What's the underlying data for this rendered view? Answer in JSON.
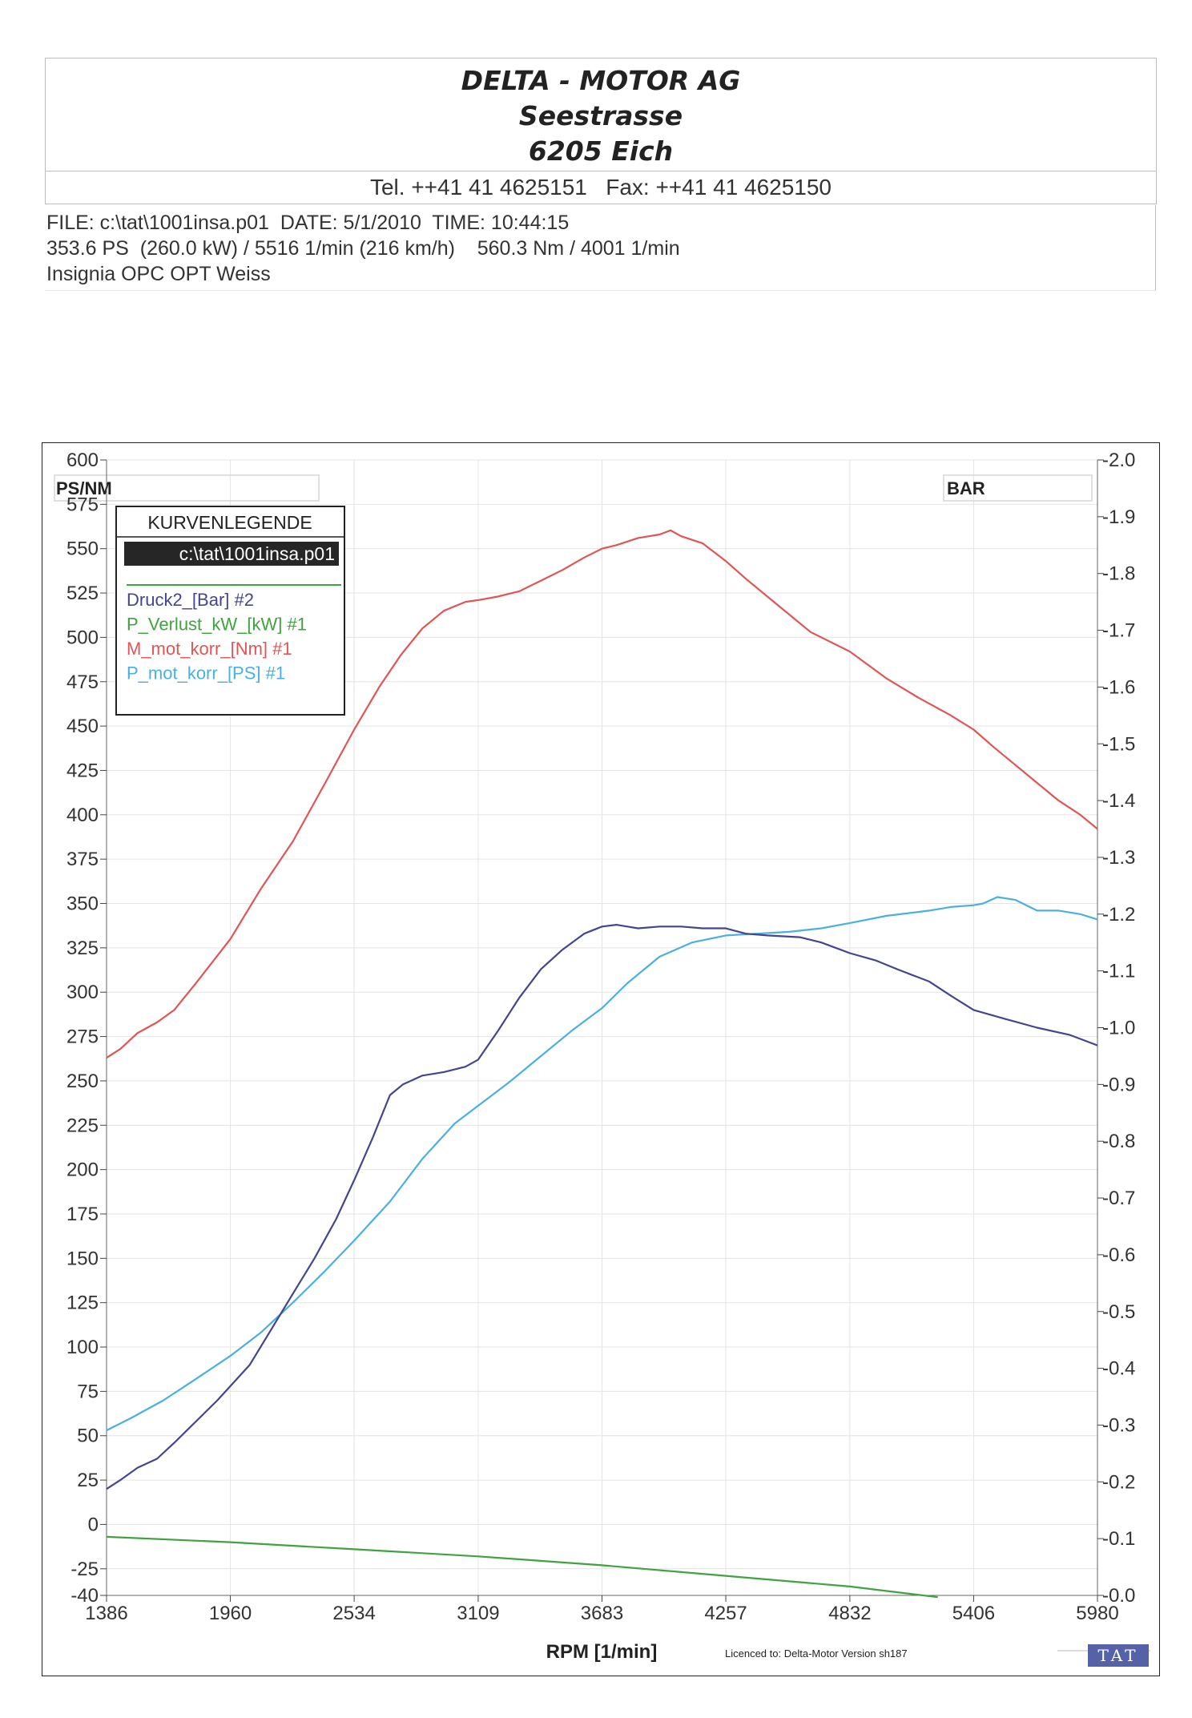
{
  "header": {
    "company": "DELTA - MOTOR AG",
    "street": "Seestrasse",
    "city": "6205 Eich",
    "contact": "Tel. ++41 41 4625151   Fax: ++41 41 4625150"
  },
  "info": {
    "line1": "FILE: c:\\tat\\1001insa.p01  DATE: 5/1/2010  TIME: 10:44:15",
    "line2": "353.6 PS  (260.0 kW) / 5516 1/min (216 km/h)    560.3 Nm / 4001 1/min",
    "line3": "Insignia OPC OPT Weiss"
  },
  "chart_data": {
    "type": "line",
    "xlabel": "RPM  [1/min]",
    "y_left_label": "PS/NM",
    "y_right_label": "BAR",
    "xlim": [
      1386,
      5980
    ],
    "x_ticks": [
      "1386",
      "1960",
      "2534",
      "3109",
      "3683",
      "4257",
      "4832",
      "5406",
      "5980"
    ],
    "ylim_left": [
      -40,
      600
    ],
    "y_left_ticks": [
      "600",
      "575",
      "550",
      "525",
      "500",
      "475",
      "450",
      "425",
      "400",
      "375",
      "350",
      "325",
      "300",
      "275",
      "250",
      "225",
      "200",
      "175",
      "150",
      "125",
      "100",
      "75",
      "50",
      "25",
      "0",
      "-25",
      "-40"
    ],
    "ylim_right": [
      -2.0,
      0.0
    ],
    "y_right_ticks": [
      "-2.0",
      "-1.9",
      "-1.8",
      "-1.7",
      "-1.6",
      "-1.5",
      "-1.4",
      "-1.3",
      "-1.2",
      "-1.1",
      "-1.0",
      "-0.9",
      "-0.8",
      "-0.7",
      "-0.6",
      "-0.5",
      "-0.4",
      "-0.3",
      "-0.2",
      "-0.1",
      "-0.0"
    ],
    "grid": true,
    "legend_position": "top-left",
    "legend_title": "KURVENLEGENDE",
    "legend_file": "c:\\tat\\1001insa.p01",
    "series": [
      {
        "name": "Druck2_[Bar] #2",
        "axis": "left",
        "color": "#45458f",
        "x": [
          1386,
          1450,
          1530,
          1620,
          1700,
          1800,
          1900,
          1960,
          2050,
          2150,
          2250,
          2350,
          2450,
          2534,
          2620,
          2700,
          2760,
          2850,
          2950,
          3050,
          3109,
          3200,
          3300,
          3400,
          3500,
          3600,
          3683,
          3750,
          3800,
          3850,
          3950,
          4050,
          4150,
          4257,
          4350,
          4450,
          4600,
          4700,
          4832,
          4950,
          5050,
          5200,
          5300,
          5406,
          5550,
          5700,
          5850,
          5980
        ],
        "y": [
          20,
          25,
          32,
          37,
          46,
          58,
          70,
          78,
          90,
          110,
          130,
          150,
          172,
          194,
          218,
          242,
          248,
          253,
          255,
          258,
          262,
          278,
          297,
          313,
          324,
          333,
          337,
          338,
          337,
          336,
          337,
          337,
          336,
          336,
          333,
          332,
          331,
          328,
          322,
          318,
          313,
          306,
          298,
          290,
          285,
          280,
          276,
          270
        ]
      },
      {
        "name": "P_Verlust_kW_[kW] #1",
        "axis": "left",
        "color": "#3fa33f",
        "x": [
          1386,
          1960,
          2534,
          3109,
          3683,
          4257,
          4832,
          5240
        ],
        "y": [
          -7,
          -10,
          -14,
          -18,
          -23,
          -29,
          -35,
          -41
        ]
      },
      {
        "name": "M_mot_korr_[Nm] #1",
        "axis": "left",
        "color": "#e05555",
        "x": [
          1386,
          1450,
          1530,
          1620,
          1700,
          1800,
          1960,
          2100,
          2250,
          2400,
          2534,
          2650,
          2750,
          2850,
          2950,
          3050,
          3109,
          3200,
          3300,
          3400,
          3500,
          3600,
          3683,
          3750,
          3850,
          3950,
          4001,
          4050,
          4150,
          4257,
          4350,
          4500,
          4650,
          4832,
          5000,
          5150,
          5300,
          5406,
          5500,
          5600,
          5700,
          5800,
          5900,
          5980
        ],
        "y": [
          263,
          268,
          277,
          283,
          290,
          305,
          330,
          358,
          385,
          418,
          448,
          472,
          490,
          505,
          515,
          520,
          521,
          523,
          526,
          532,
          538,
          545,
          550,
          552,
          556,
          558,
          560.3,
          557,
          553,
          543,
          533,
          518,
          503,
          492,
          477,
          466,
          456,
          448,
          438,
          428,
          418,
          408,
          400,
          392
        ]
      },
      {
        "name": "P_mot_korr_[PS] #1",
        "axis": "left",
        "color": "#4ab0e0",
        "x": [
          1386,
          1500,
          1650,
          1800,
          1960,
          2100,
          2250,
          2400,
          2534,
          2700,
          2850,
          3000,
          3109,
          3250,
          3400,
          3550,
          3683,
          3800,
          3950,
          4100,
          4257,
          4400,
          4550,
          4700,
          4832,
          5000,
          5200,
          5300,
          5406,
          5450,
          5516,
          5600,
          5700,
          5800,
          5900,
          5980
        ],
        "y": [
          53,
          60,
          70,
          82,
          95,
          108,
          125,
          143,
          160,
          182,
          206,
          226,
          236,
          249,
          264,
          279,
          291,
          305,
          320,
          328,
          332,
          333,
          334,
          336,
          339,
          343,
          346,
          348,
          349,
          350,
          353.6,
          352,
          346,
          346,
          344,
          341
        ]
      }
    ],
    "annotations": {
      "license": "Licenced to: Delta-Motor   Version sh187",
      "brand": "TAT"
    }
  }
}
